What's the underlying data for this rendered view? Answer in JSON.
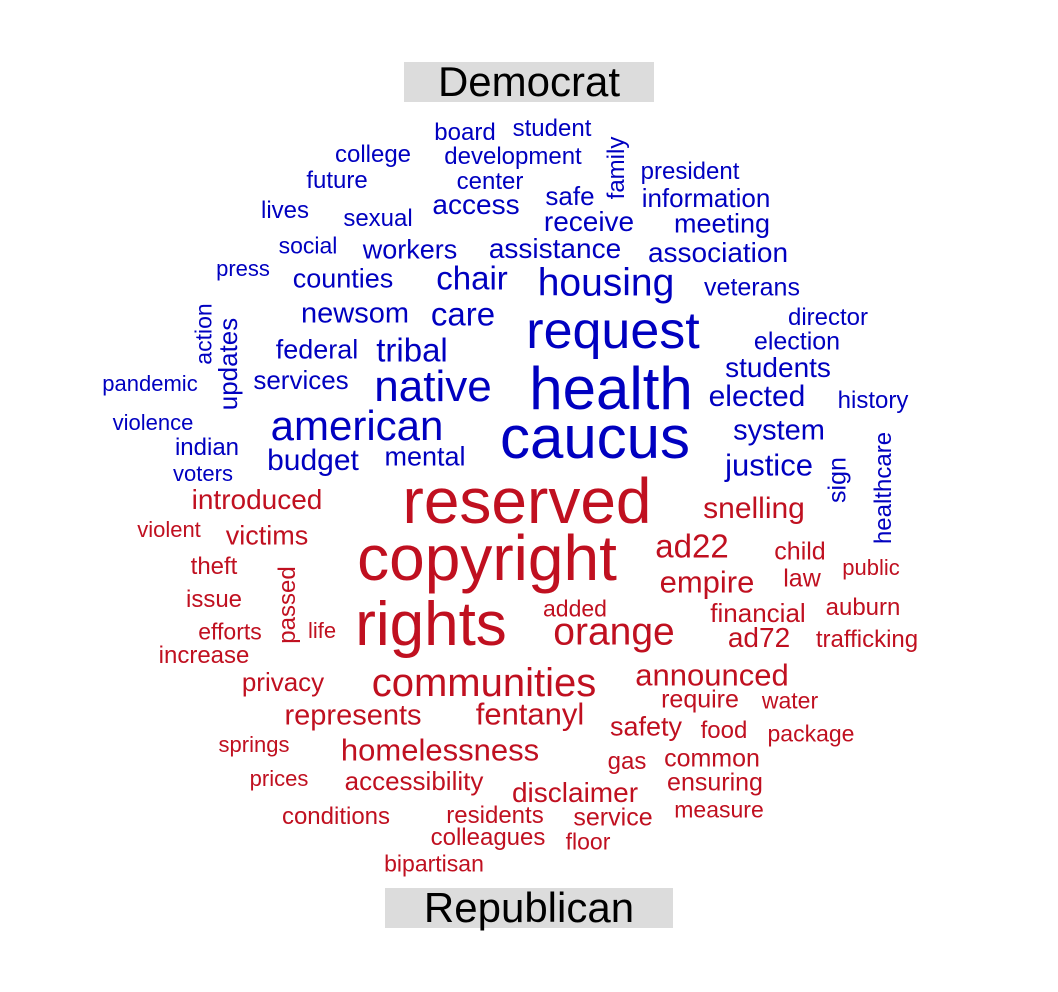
{
  "chart_data": {
    "type": "wordcloud",
    "groups": [
      {
        "name": "Democrat",
        "color": "#0000c0",
        "words": [
          "board",
          "student",
          "college",
          "development",
          "family",
          "president",
          "future",
          "center",
          "safe",
          "information",
          "lives",
          "sexual",
          "access",
          "receive",
          "meeting",
          "social",
          "workers",
          "assistance",
          "association",
          "press",
          "counties",
          "chair",
          "housing",
          "veterans",
          "action",
          "updates",
          "newsom",
          "care",
          "request",
          "director",
          "federal",
          "tribal",
          "election",
          "pandemic",
          "services",
          "native",
          "health",
          "students",
          "elected",
          "history",
          "violence",
          "american",
          "caucus",
          "system",
          "indian",
          "mental",
          "budget",
          "justice",
          "voters",
          "sign",
          "healthcare"
        ]
      },
      {
        "name": "Republican",
        "color": "#c01020",
        "words": [
          "reserved",
          "introduced",
          "snelling",
          "violent",
          "victims",
          "copyright",
          "ad22",
          "theft",
          "passed",
          "child",
          "empire",
          "public",
          "law",
          "issue",
          "rights",
          "added",
          "auburn",
          "financial",
          "efforts",
          "life",
          "orange",
          "ad72",
          "trafficking",
          "increase",
          "privacy",
          "communities",
          "announced",
          "require",
          "water",
          "represents",
          "fentanyl",
          "safety",
          "food",
          "package",
          "springs",
          "homelessness",
          "gas",
          "common",
          "prices",
          "accessibility",
          "ensuring",
          "disclaimer",
          "conditions",
          "residents",
          "service",
          "measure",
          "colleagues",
          "floor",
          "bipartisan"
        ]
      }
    ]
  }
}
